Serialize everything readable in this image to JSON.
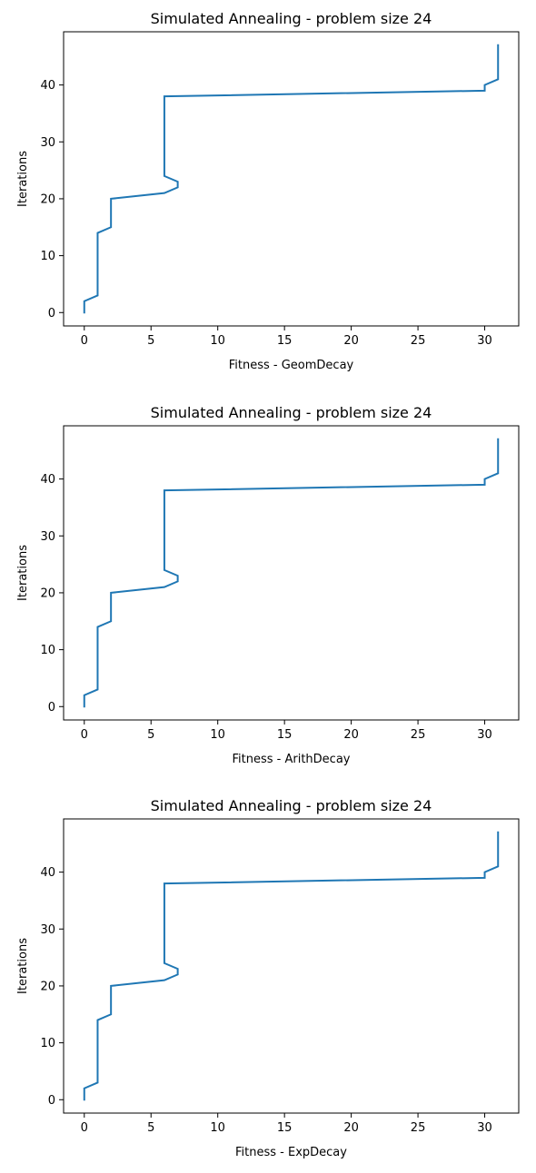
{
  "chart_data": [
    {
      "type": "line",
      "title": "Simulated Annealing - problem size 24",
      "xlabel": "Fitness - GeomDecay",
      "ylabel": "Iterations",
      "xlim": [
        -1.55,
        32.55
      ],
      "ylim": [
        -2.35,
        49.35
      ],
      "xticks": [
        0,
        5,
        10,
        15,
        20,
        25,
        30
      ],
      "yticks": [
        0,
        10,
        20,
        30,
        40
      ],
      "grid": false,
      "series": [
        {
          "x": [
            0,
            0,
            1,
            1,
            1,
            2,
            2,
            6,
            7,
            7,
            6,
            6,
            6,
            30,
            30,
            31,
            31
          ],
          "y": [
            0,
            2,
            3,
            13,
            14,
            15,
            20,
            21,
            22,
            23,
            24,
            37,
            38,
            39,
            40,
            41,
            47
          ],
          "color": "#1f77b4"
        }
      ]
    },
    {
      "type": "line",
      "title": "Simulated Annealing - problem size 24",
      "xlabel": "Fitness - ArithDecay",
      "ylabel": "Iterations",
      "xlim": [
        -1.55,
        32.55
      ],
      "ylim": [
        -2.35,
        49.35
      ],
      "xticks": [
        0,
        5,
        10,
        15,
        20,
        25,
        30
      ],
      "yticks": [
        0,
        10,
        20,
        30,
        40
      ],
      "grid": false,
      "series": [
        {
          "x": [
            0,
            0,
            1,
            1,
            1,
            2,
            2,
            6,
            7,
            7,
            6,
            6,
            6,
            30,
            30,
            31,
            31
          ],
          "y": [
            0,
            2,
            3,
            13,
            14,
            15,
            20,
            21,
            22,
            23,
            24,
            37,
            38,
            39,
            40,
            41,
            47
          ],
          "color": "#1f77b4"
        }
      ]
    },
    {
      "type": "line",
      "title": "Simulated Annealing - problem size 24",
      "xlabel": "Fitness - ExpDecay",
      "ylabel": "Iterations",
      "xlim": [
        -1.55,
        32.55
      ],
      "ylim": [
        -2.35,
        49.35
      ],
      "xticks": [
        0,
        5,
        10,
        15,
        20,
        25,
        30
      ],
      "yticks": [
        0,
        10,
        20,
        30,
        40
      ],
      "grid": false,
      "series": [
        {
          "x": [
            0,
            0,
            1,
            1,
            1,
            2,
            2,
            6,
            7,
            7,
            6,
            6,
            6,
            30,
            30,
            31,
            31
          ],
          "y": [
            0,
            2,
            3,
            13,
            14,
            15,
            20,
            21,
            22,
            23,
            24,
            37,
            38,
            39,
            40,
            41,
            47
          ],
          "color": "#1f77b4"
        }
      ]
    }
  ]
}
